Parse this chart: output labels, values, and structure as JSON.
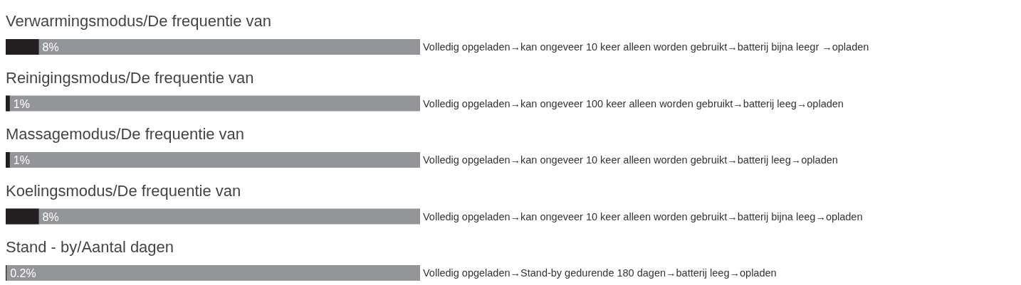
{
  "chart_data": {
    "type": "bar",
    "orientation": "horizontal",
    "xlim": [
      0,
      100
    ],
    "categories": [
      "Verwarmingsmodus/De frequentie van",
      "Reinigingsmodus/De frequentie van",
      "Massagemodus/De frequentie van",
      "Koelingsmodus/De frequentie van",
      "Stand - by/Aantal dagen"
    ],
    "series": [
      {
        "color": "#231f20",
        "values": [
          8,
          1,
          1,
          8,
          0.2
        ],
        "value_labels": [
          "8%",
          "1%",
          "1%",
          "8%",
          "0.2%"
        ]
      }
    ],
    "annotations": [
      "Volledig opgeladen→kan ongeveer 10 keer alleen worden gebruikt→batterij bijna leegr →opladen",
      "Volledig opgeladen→kan ongeveer 100 keer alleen worden gebruikt→batterij leeg→opladen",
      "Volledig opgeladen→kan ongeveer 10 keer alleen worden gebruikt→batterij leeg→opladen",
      "Volledig opgeladen→kan ongeveer 10 keer alleen worden gebruikt→batterij bijna leeg→opladen",
      "Volledig opgeladen→Stand-by gedurende 180 dagen→batterij leeg→opladen"
    ]
  }
}
